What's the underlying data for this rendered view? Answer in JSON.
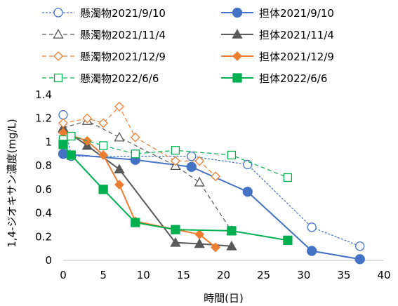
{
  "chart_data": {
    "type": "line",
    "xlabel": "時間(日)",
    "ylabel": "1,4-ジオキサン濃度(mg/L)",
    "xlim": [
      0,
      40
    ],
    "ylim": [
      0,
      1.4
    ],
    "xticks": [
      0,
      5,
      10,
      15,
      20,
      25,
      30,
      35,
      40
    ],
    "yticks": [
      0,
      0.2,
      0.4,
      0.6,
      0.8,
      1,
      1.2,
      1.4
    ],
    "xtick_labels": [
      "0",
      "5",
      "10",
      "15",
      "20",
      "25",
      "30",
      "35",
      "40"
    ],
    "ytick_labels": [
      "0",
      "0.2",
      "0.4",
      "0.6",
      "0.8",
      "1",
      "1.2",
      "1.4"
    ],
    "grid": false,
    "legend_position": "top",
    "series": [
      {
        "name": "懸濁物2021/9/10",
        "color": "#4472C4",
        "line": "dotted",
        "marker": "circle",
        "filled": false,
        "x": [
          0,
          1,
          16,
          23,
          31,
          37
        ],
        "y": [
          1.23,
          0.88,
          0.88,
          0.81,
          0.28,
          0.12
        ]
      },
      {
        "name": "担体2021/9/10",
        "color": "#4472C4",
        "line": "solid",
        "marker": "circle",
        "filled": true,
        "x": [
          0,
          9,
          16,
          23,
          31,
          37
        ],
        "y": [
          0.9,
          0.85,
          0.79,
          0.58,
          0.08,
          0.01
        ]
      },
      {
        "name": "懸濁物2021/11/4",
        "color": "#595959",
        "line": "dashed",
        "marker": "triangle",
        "filled": false,
        "x": [
          0,
          3,
          7,
          14,
          17,
          21
        ],
        "y": [
          1.12,
          1.18,
          1.04,
          0.8,
          0.66,
          0.25
        ]
      },
      {
        "name": "担体2021/11/4",
        "color": "#595959",
        "line": "solid",
        "marker": "triangle",
        "filled": true,
        "x": [
          0,
          3,
          7,
          14,
          17,
          21
        ],
        "y": [
          1.11,
          0.97,
          0.77,
          0.15,
          0.14,
          0.12
        ]
      },
      {
        "name": "懸濁物2021/12/9",
        "color": "#ED7D31",
        "line": "dashed",
        "marker": "diamond",
        "filled": false,
        "x": [
          0,
          3,
          5,
          7,
          9,
          14,
          17,
          19
        ],
        "y": [
          1.16,
          1.2,
          1.16,
          1.3,
          1.04,
          0.84,
          0.84,
          0.71
        ]
      },
      {
        "name": "担体2021/12/9",
        "color": "#ED7D31",
        "line": "solid",
        "marker": "diamond",
        "filled": true,
        "x": [
          0,
          3,
          5,
          7,
          9,
          17,
          19
        ],
        "y": [
          1.08,
          1.01,
          0.89,
          0.64,
          0.33,
          0.22,
          0.11
        ]
      },
      {
        "name": "懸濁物2022/6/6",
        "color": "#00B050",
        "line": "dashed",
        "marker": "square",
        "filled": false,
        "x": [
          0,
          1,
          5,
          9,
          14,
          21,
          28
        ],
        "y": [
          1.02,
          1.05,
          0.97,
          0.9,
          0.93,
          0.89,
          0.7
        ]
      },
      {
        "name": "担体2022/6/6",
        "color": "#00B050",
        "line": "solid",
        "marker": "square",
        "filled": true,
        "x": [
          0,
          1,
          5,
          9,
          14,
          21,
          28
        ],
        "y": [
          0.98,
          0.89,
          0.6,
          0.32,
          0.26,
          0.25,
          0.17
        ]
      }
    ]
  }
}
